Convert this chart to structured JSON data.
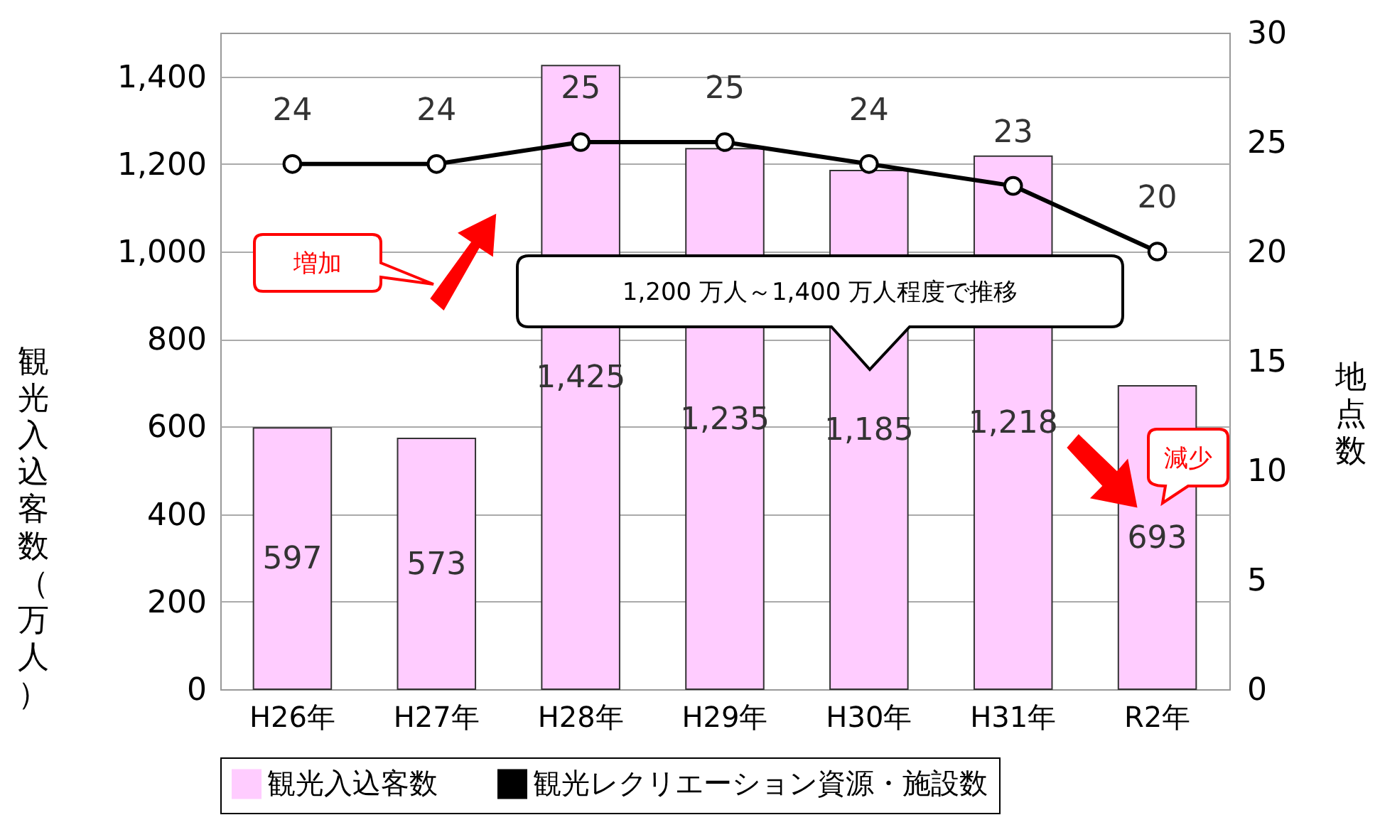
{
  "chart_data": {
    "type": "bar",
    "categories": [
      "H26年",
      "H27年",
      "H28年",
      "H29年",
      "H30年",
      "H31年",
      "R2年"
    ],
    "series": [
      {
        "name": "観光入込客数",
        "type": "bar",
        "color": "#ffccff",
        "values": [
          597,
          573,
          1425,
          1235,
          1185,
          1218,
          693
        ],
        "value_labels": [
          "597",
          "573",
          "1,425",
          "1,235",
          "1,185",
          "1,218",
          "693"
        ]
      },
      {
        "name": "観光レクリエーション資源・施設数",
        "type": "line",
        "axis": "y2",
        "color": "#000000",
        "values": [
          24,
          24,
          25,
          25,
          24,
          23,
          20
        ]
      }
    ],
    "ylabel": "観光入込客数（万人）",
    "y2label": "地点数",
    "ylim": [
      0,
      1500
    ],
    "yticks": [
      0,
      200,
      400,
      600,
      800,
      {
        "value": 1000,
        "label": "1,000"
      },
      {
        "value": 1200,
        "label": "1,200"
      },
      {
        "value": 1400,
        "label": "1,400"
      }
    ],
    "y2lim": [
      0,
      30
    ],
    "y2ticks": [
      0,
      5,
      10,
      15,
      20,
      25,
      30
    ],
    "grid": "y",
    "legend": "bottom",
    "data_labels": true,
    "marker": "circle",
    "line_style": "solid",
    "annotations": [
      "増加",
      "1,200 万人～1,400 万人程度で推移",
      "減少"
    ]
  }
}
